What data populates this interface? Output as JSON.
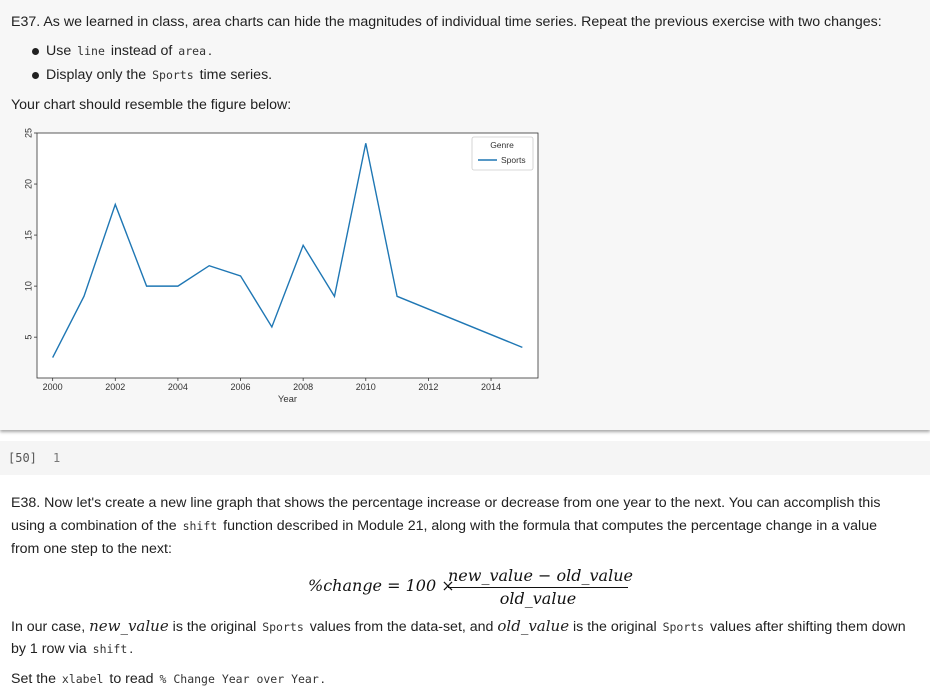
{
  "e37": {
    "text_before": "E37. As we learned in class, area charts can hide the magnitudes of individual time series. Repeat the previous exercise with two changes:",
    "bullets": [
      {
        "pre": "Use ",
        "code": "line",
        "mid": " instead of ",
        "code2": "area",
        "post": "."
      },
      {
        "pre": "Display only the ",
        "code": "Sports",
        "mid": " time series.",
        "code2": "",
        "post": ""
      }
    ],
    "resemble": "Your chart should resemble the figure below:"
  },
  "chart_data": {
    "type": "line",
    "x": [
      2000,
      2001,
      2002,
      2003,
      2004,
      2005,
      2006,
      2007,
      2008,
      2009,
      2010,
      2011,
      2015
    ],
    "series": [
      {
        "name": "Sports",
        "values": [
          3,
          9,
          18,
          10,
          10,
          12,
          11,
          6,
          14,
          9,
          24,
          9,
          4
        ],
        "color": "#1f77b4"
      }
    ],
    "xlabel": "Year",
    "ylabel": "",
    "xlim": [
      1999.5,
      2015.5
    ],
    "ylim": [
      1,
      25
    ],
    "xticks": [
      "2000",
      "2002",
      "2004",
      "2006",
      "2008",
      "2010",
      "2012",
      "2014"
    ],
    "yticks": [
      "5",
      "10",
      "15",
      "20",
      "25"
    ],
    "legend_title": "Genre",
    "legend_position": "top-right",
    "grid": false
  },
  "codecell": {
    "prompt": "[50]",
    "line": "1"
  },
  "e38": {
    "line1": "E38. Now let's create a new line graph that shows the percentage increase or decrease from one year to the next. You can accomplish this",
    "line2_pre": "using a combination of the ",
    "line2_code": "shift",
    "line2_post": " function described in Module 21, along with the formula that computes the percentage change in a value",
    "line3": "from one step to the next:",
    "formula_lhs": "%change = 100 ×",
    "formula_num": "new_value − old_value",
    "formula_den": "old_value",
    "p2_a": "In our case, ",
    "p2_var1": "new_value",
    "p2_b": " is the original ",
    "p2_code1": "Sports",
    "p2_c": " values from the data-set, and ",
    "p2_var2": "old_value",
    "p2_d": " is the original ",
    "p2_code2": "Sports",
    "p2_e": " values after shifting them down",
    "p2_line2_pre": "by 1 row via ",
    "p2_line2_code": "shift",
    "p2_line2_post": ".",
    "p3_pre": "Set the ",
    "p3_code": "xlabel",
    "p3_mid": " to read ",
    "p3_code2": "% Change Year over Year",
    "p3_post": "."
  }
}
